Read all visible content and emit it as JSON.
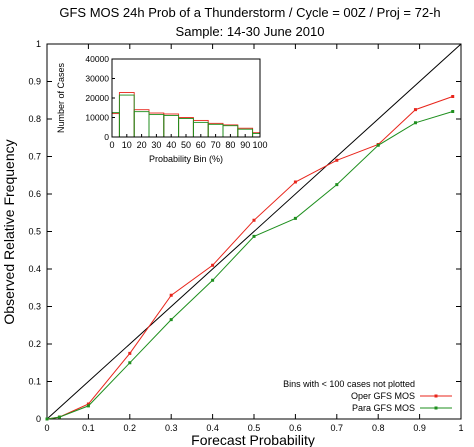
{
  "title_line1": "GFS MOS 24h Prob of a Thunderstorm / Cycle = 00Z / Proj = 72-h",
  "title_line2": "Sample: 14-30 June 2010",
  "chart_data": [
    {
      "type": "line",
      "xlabel": "Forecast Probability",
      "ylabel": "Observed Relative Frequency",
      "xlim": [
        0,
        1
      ],
      "ylim": [
        0,
        1
      ],
      "x_ticks": [
        "0",
        "0.1",
        "0.2",
        "0.3",
        "0.4",
        "0.5",
        "0.6",
        "0.7",
        "0.8",
        "0.9",
        "1"
      ],
      "y_ticks": [
        "0",
        "0.1",
        "0.2",
        "0.3",
        "0.4",
        "0.5",
        "0.6",
        "0.7",
        "0.8",
        "0.9",
        "1"
      ],
      "grid": false,
      "legend_position": "bottom-right",
      "note": "Bins with < 100 cases not plotted",
      "series": [
        {
          "name": "Oper GFS MOS",
          "color": "#e8251b",
          "x": [
            0.0,
            0.03,
            0.1,
            0.2,
            0.3,
            0.4,
            0.5,
            0.6,
            0.7,
            0.8,
            0.89,
            0.98
          ],
          "y": [
            0.0,
            0.005,
            0.04,
            0.175,
            0.33,
            0.41,
            0.53,
            0.632,
            0.69,
            0.732,
            0.825,
            0.86
          ]
        },
        {
          "name": "Para GFS MOS",
          "color": "#1e8f1e",
          "x": [
            0.0,
            0.03,
            0.1,
            0.2,
            0.3,
            0.4,
            0.5,
            0.6,
            0.7,
            0.8,
            0.89,
            0.98
          ],
          "y": [
            0.0,
            0.005,
            0.035,
            0.15,
            0.265,
            0.37,
            0.487,
            0.535,
            0.625,
            0.73,
            0.79,
            0.82
          ]
        }
      ],
      "reference_line": {
        "x": [
          0,
          1
        ],
        "y": [
          0,
          1
        ],
        "color": "#000000"
      }
    },
    {
      "type": "bar",
      "xlabel": "Probability Bin (%)",
      "ylabel": "Number of Cases",
      "xlim": [
        0,
        100
      ],
      "ylim": [
        0,
        40000
      ],
      "x_ticks": [
        "0",
        "10",
        "20",
        "30",
        "40",
        "50",
        "60",
        "70",
        "80",
        "90",
        "100"
      ],
      "y_ticks": [
        "0",
        "10000",
        "20000",
        "30000",
        "40000"
      ],
      "bin_edges": [
        0,
        5,
        15,
        25,
        35,
        45,
        55,
        65,
        75,
        85,
        95,
        100
      ],
      "series": [
        {
          "name": "Oper GFS MOS",
          "color": "#e8251b",
          "values": [
            12000,
            22800,
            14000,
            12300,
            11800,
            10000,
            8500,
            7000,
            6200,
            4500,
            2200
          ]
        },
        {
          "name": "Para GFS MOS",
          "color": "#1e8f1e",
          "values": [
            12500,
            21500,
            13000,
            11500,
            11000,
            9500,
            7500,
            6500,
            5800,
            4000,
            1800
          ]
        }
      ]
    }
  ]
}
